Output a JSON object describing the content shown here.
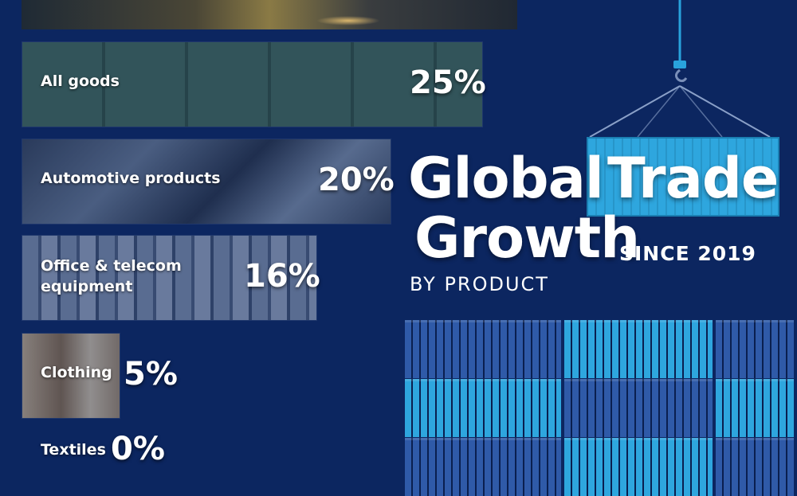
{
  "colors": {
    "background": "#0c2660",
    "accent": "#29a3dc",
    "container_dark": "#3a67b8",
    "container_light": "#2ea6de"
  },
  "header": {
    "title_line1_a": "Global",
    "title_line1_b": "Trade",
    "title_line2": "Growth",
    "subtitle": "SINCE 2019",
    "byline": "BY PRODUCT"
  },
  "chart_data": {
    "type": "bar",
    "orientation": "horizontal",
    "categories": [
      "All goods",
      "Automotive products",
      "Office & telecom equipment",
      "Clothing",
      "Textiles"
    ],
    "values": [
      25,
      20,
      16,
      5,
      0
    ],
    "value_labels": [
      "25%",
      "20%",
      "16%",
      "5%",
      "0%"
    ],
    "grid": false
  },
  "icons": {
    "top_bar_image": "machinery-sparks-image",
    "crane": "crane-hook-icon",
    "containers": "shipping-containers-icon"
  }
}
